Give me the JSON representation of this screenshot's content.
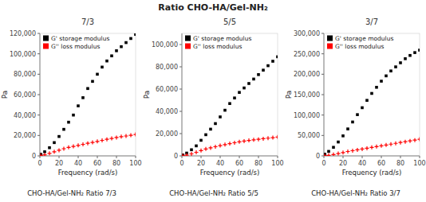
{
  "title": "Ratio CHO-HA/Gel-NH₂",
  "chart_data": [
    {
      "type": "scatter",
      "title": "CHO-HA/Gel-NH₂  Ratio 7/3",
      "subtitle": "7/3",
      "x_label": "Frequency (rad/s)",
      "y_label": "Pa",
      "x": [
        1,
        5,
        10,
        15,
        20,
        25,
        30,
        35,
        40,
        45,
        50,
        55,
        60,
        65,
        70,
        75,
        80,
        85,
        90,
        95,
        100
      ],
      "series": [
        {
          "name": "G' storage modulus",
          "color": "black",
          "marker": "square",
          "values": [
            1500,
            4000,
            8000,
            13000,
            19000,
            26000,
            33000,
            40000,
            49000,
            57000,
            66000,
            73000,
            80000,
            87000,
            93000,
            98000,
            103000,
            107000,
            111000,
            115000,
            119000
          ]
        },
        {
          "name": "G'' loss modulus",
          "color": "red",
          "marker": "plus",
          "values": [
            300,
            1000,
            2500,
            4000,
            5500,
            7000,
            8300,
            9300,
            10300,
            11300,
            12300,
            13200,
            14200,
            15200,
            16200,
            17100,
            18000,
            18800,
            19500,
            20200,
            21000
          ]
        }
      ],
      "xlim": [
        0,
        100
      ],
      "xticks": [
        0,
        20,
        40,
        60,
        80,
        100
      ],
      "ylim": [
        0,
        120000
      ],
      "yticks": [
        0,
        {
          "value": 20000,
          "label": "20,000"
        },
        {
          "value": 40000,
          "label": "40,000"
        },
        {
          "value": 60000,
          "label": "60,000"
        },
        {
          "value": 80000,
          "label": "80,000"
        },
        {
          "value": 100000,
          "label": "100,000"
        },
        {
          "value": 120000,
          "label": "120,000"
        }
      ],
      "grid": false,
      "legend": "upper left"
    },
    {
      "type": "scatter",
      "title": "CHO-HA/Gel-NH₂  Ratio 5/5",
      "subtitle": "5/5",
      "x_label": "Frequency (rad/s)",
      "y_label": "Pa",
      "x": [
        1,
        5,
        10,
        15,
        20,
        25,
        30,
        35,
        40,
        45,
        50,
        55,
        60,
        65,
        70,
        75,
        80,
        85,
        90,
        95,
        100
      ],
      "series": [
        {
          "name": "G' storage modulus",
          "color": "black",
          "marker": "square",
          "values": [
            800,
            2500,
            5500,
            9000,
            14000,
            19000,
            24000,
            29000,
            35000,
            41000,
            47000,
            52000,
            57000,
            61000,
            65000,
            69000,
            73000,
            77000,
            81000,
            85000,
            89000
          ]
        },
        {
          "name": "G'' loss modulus",
          "color": "red",
          "marker": "plus",
          "values": [
            150,
            600,
            1800,
            3200,
            4800,
            6200,
            7200,
            8200,
            9200,
            10100,
            11000,
            11800,
            12600,
            13300,
            13900,
            14400,
            14900,
            15400,
            15900,
            16400,
            16900
          ]
        }
      ],
      "xlim": [
        0,
        100
      ],
      "xticks": [
        0,
        20,
        40,
        60,
        80,
        100
      ],
      "ylim": [
        0,
        110000
      ],
      "yticks": [
        0,
        {
          "value": 20000,
          "label": "20,000"
        },
        {
          "value": 40000,
          "label": "40,000"
        },
        {
          "value": 60000,
          "label": "60,000"
        },
        {
          "value": 80000,
          "label": "80,000"
        },
        {
          "value": 100000,
          "label": "100,000"
        }
      ],
      "grid": false,
      "legend": "upper left"
    },
    {
      "type": "scatter",
      "title": "CHO-HA/Gel-NH₂  Ratio 3/7",
      "subtitle": "3/7",
      "x_label": "Frequency (rad/s)",
      "y_label": "Pa",
      "x": [
        1,
        5,
        10,
        15,
        20,
        25,
        30,
        35,
        40,
        45,
        50,
        55,
        60,
        65,
        70,
        75,
        80,
        85,
        90,
        95,
        100
      ],
      "series": [
        {
          "name": "G' storage modulus",
          "color": "black",
          "marker": "square",
          "values": [
            4000,
            11000,
            21000,
            34000,
            49000,
            66000,
            83000,
            101000,
            118000,
            136000,
            153000,
            168000,
            183000,
            196000,
            208000,
            218000,
            228000,
            238000,
            246000,
            253000,
            259000
          ]
        },
        {
          "name": "G'' loss modulus",
          "color": "red",
          "marker": "plus",
          "values": [
            400,
            1400,
            3300,
            5700,
            8200,
            10700,
            12700,
            14700,
            16700,
            18700,
            20700,
            22700,
            24700,
            26700,
            28700,
            30700,
            32700,
            34700,
            36700,
            38700,
            40700
          ]
        }
      ],
      "xlim": [
        0,
        100
      ],
      "xticks": [
        0,
        20,
        40,
        60,
        80,
        100
      ],
      "ylim": [
        0,
        300000
      ],
      "yticks": [
        0,
        {
          "value": 50000,
          "label": "50,000"
        },
        {
          "value": 100000,
          "label": "100,000"
        },
        {
          "value": 150000,
          "label": "150,000"
        },
        {
          "value": 200000,
          "label": "200,000"
        },
        {
          "value": 250000,
          "label": "250,000"
        },
        {
          "value": 300000,
          "label": "300,000"
        }
      ],
      "grid": false,
      "legend": "upper left"
    }
  ]
}
